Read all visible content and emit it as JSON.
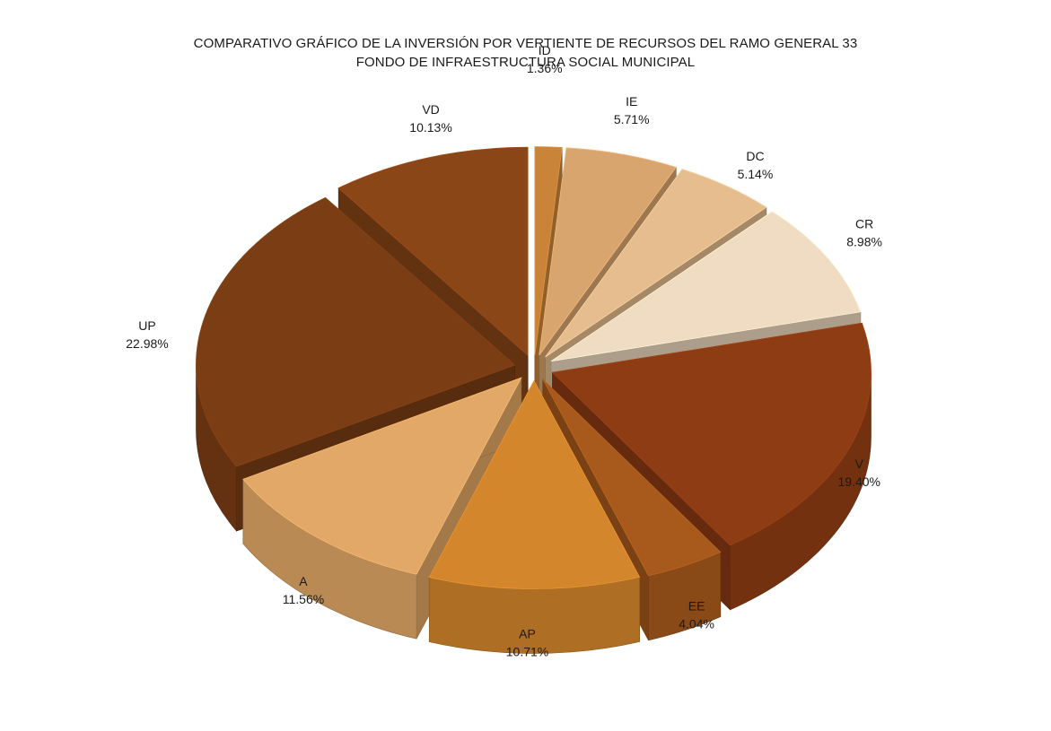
{
  "chart_data": {
    "type": "pie",
    "title": "COMPARATIVO GRÁFICO DE LA INVERSIÓN POR VERTIENTE DE RECURSOS DEL RAMO GENERAL 33",
    "subtitle": "FONDO DE INFRAESTRUCTURA SOCIAL MUNICIPAL",
    "slices": [
      {
        "label": "ID",
        "value": 1.36,
        "display": "1.36%",
        "color": "#c9843a"
      },
      {
        "label": "IE",
        "value": 5.71,
        "display": "5.71%",
        "color": "#d9a56e"
      },
      {
        "label": "DC",
        "value": 5.14,
        "display": "5.14%",
        "color": "#e5bd8e"
      },
      {
        "label": "CR",
        "value": 8.98,
        "display": "8.98%",
        "color": "#f0dcc2"
      },
      {
        "label": "V",
        "value": 19.4,
        "display": "19.40%",
        "color": "#8e3c14"
      },
      {
        "label": "EE",
        "value": 4.04,
        "display": "4.04%",
        "color": "#a85a1c"
      },
      {
        "label": "AP",
        "value": 10.71,
        "display": "10.71%",
        "color": "#d4862c"
      },
      {
        "label": "A",
        "value": 11.56,
        "display": "11.56%",
        "color": "#e2a867"
      },
      {
        "label": "UP",
        "value": 22.98,
        "display": "22.98%",
        "color": "#7a3d14"
      },
      {
        "label": "VD",
        "value": 10.13,
        "display": "10.13%",
        "color": "#8a4617"
      }
    ]
  }
}
